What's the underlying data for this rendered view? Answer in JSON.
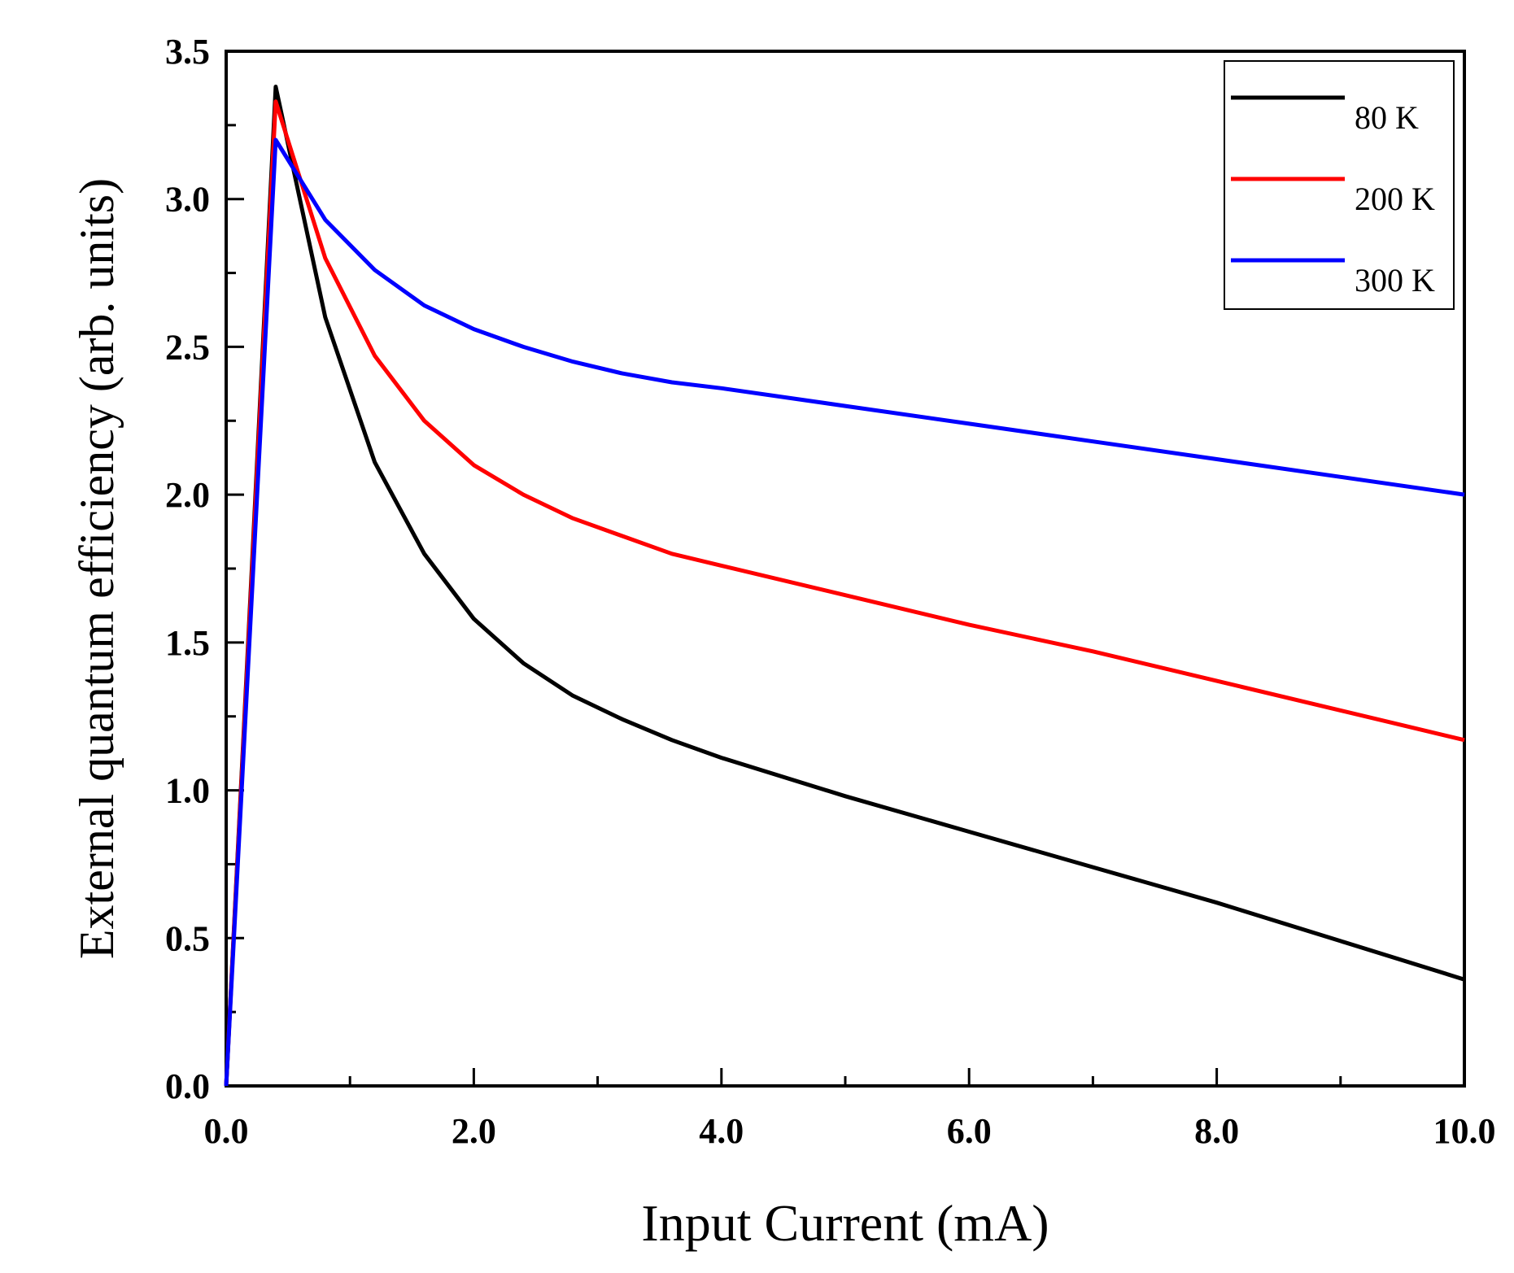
{
  "chart_data": {
    "type": "line",
    "title": "",
    "xlabel": "Input Current (mA)",
    "ylabel": "External quantum efficiency (arb. units)",
    "xlim": [
      0,
      10
    ],
    "ylim": [
      0,
      3.5
    ],
    "grid": false,
    "legend_position": "top-right",
    "x_ticks": [
      "0.0",
      "2.0",
      "4.0",
      "6.0",
      "8.0",
      "10.0"
    ],
    "y_ticks": [
      "0.0",
      "0.5",
      "1.0",
      "1.5",
      "2.0",
      "2.5",
      "3.0",
      "3.5"
    ],
    "x_tick_values": [
      0,
      2,
      4,
      6,
      8,
      10
    ],
    "y_tick_values": [
      0,
      0.5,
      1.0,
      1.5,
      2.0,
      2.5,
      3.0,
      3.5
    ],
    "x_minor_tick_values": [
      1,
      3,
      5,
      7,
      9
    ],
    "y_minor_tick_values": [
      0.25,
      0.75,
      1.25,
      1.75,
      2.25,
      2.75,
      3.25
    ],
    "series": [
      {
        "name": "80 K",
        "color": "#000000",
        "x": [
          0,
          0.4,
          0.8,
          1.2,
          1.6,
          2.0,
          2.4,
          2.8,
          3.2,
          3.6,
          4.0,
          5.0,
          6.0,
          7.0,
          8.0,
          9.0,
          10.0
        ],
        "y": [
          0,
          3.38,
          2.6,
          2.11,
          1.8,
          1.58,
          1.43,
          1.32,
          1.24,
          1.17,
          1.11,
          0.98,
          0.86,
          0.74,
          0.62,
          0.49,
          0.36
        ]
      },
      {
        "name": "200 K",
        "color": "#ff0000",
        "x": [
          0,
          0.4,
          0.8,
          1.2,
          1.6,
          2.0,
          2.4,
          2.8,
          3.2,
          3.6,
          4.0,
          5.0,
          6.0,
          7.0,
          8.0,
          9.0,
          10.0
        ],
        "y": [
          0,
          3.33,
          2.8,
          2.47,
          2.25,
          2.1,
          2.0,
          1.92,
          1.86,
          1.8,
          1.76,
          1.66,
          1.56,
          1.47,
          1.37,
          1.27,
          1.17
        ]
      },
      {
        "name": "300 K",
        "color": "#0000ff",
        "x": [
          0,
          0.4,
          0.8,
          1.2,
          1.6,
          2.0,
          2.4,
          2.8,
          3.2,
          3.6,
          4.0,
          5.0,
          6.0,
          7.0,
          8.0,
          9.0,
          10.0
        ],
        "y": [
          0,
          3.2,
          2.93,
          2.76,
          2.64,
          2.56,
          2.5,
          2.45,
          2.41,
          2.38,
          2.36,
          2.3,
          2.24,
          2.18,
          2.12,
          2.06,
          2.0
        ]
      }
    ]
  }
}
